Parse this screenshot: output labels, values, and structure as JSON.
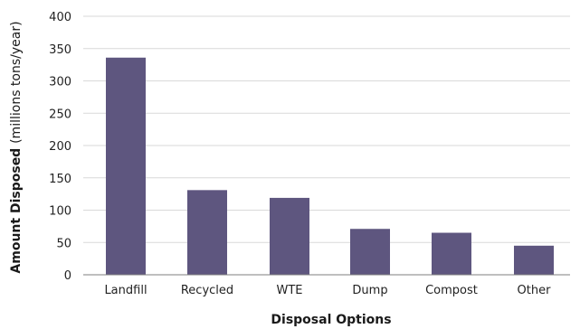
{
  "chart_data": {
    "type": "bar",
    "categories": [
      "Landfill",
      "Recycled",
      "WTE",
      "Dump",
      "Compost",
      "Other"
    ],
    "values": [
      336,
      131,
      119,
      71,
      65,
      45
    ],
    "xlabel": "Disposal Options",
    "ylabel": "Amount Disposed",
    "ylabel_unit": "(millions tons/year)",
    "ylim": [
      0,
      400
    ],
    "yticks": [
      0,
      50,
      100,
      150,
      200,
      250,
      300,
      350,
      400
    ],
    "grid": true,
    "bar_color": "#5e567f"
  }
}
